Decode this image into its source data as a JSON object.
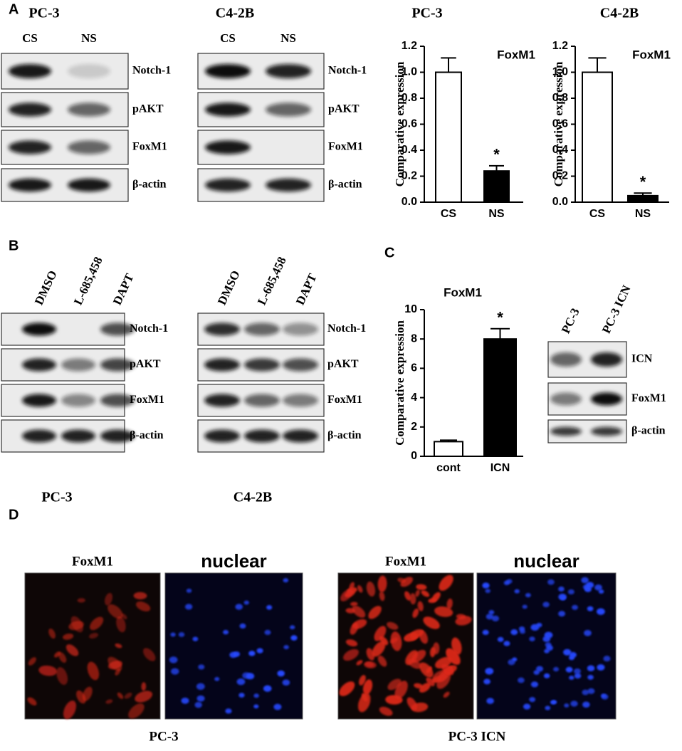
{
  "panel_a": {
    "label": "A",
    "blots": [
      {
        "title": "PC-3",
        "lanes": [
          "CS",
          "NS"
        ],
        "rows": [
          "Notch-1",
          "pAKT",
          "FoxM1",
          "β-actin"
        ]
      },
      {
        "title": "C4-2B",
        "lanes": [
          "CS",
          "NS"
        ],
        "rows": [
          "Notch-1",
          "pAKT",
          "FoxM1",
          "β-actin"
        ]
      }
    ],
    "charts": [
      {
        "type": "bar",
        "title": "PC-3",
        "annotation": "FoxM1",
        "y_label": "Comparative expression",
        "categories": [
          "CS",
          "NS"
        ],
        "values": [
          1.0,
          0.24
        ],
        "errors": [
          0.11,
          0.04
        ],
        "significance": [
          null,
          "*"
        ],
        "ylim": [
          0,
          1.2
        ],
        "yticks": [
          {
            "value": 0,
            "label": "0.0"
          },
          {
            "value": 0.2,
            "label": "0.2"
          },
          {
            "value": 0.4,
            "label": "0.4"
          },
          {
            "value": 0.6,
            "label": "0.6"
          },
          {
            "value": 0.8,
            "label": "0.8"
          },
          {
            "value": 1,
            "label": "1.0"
          },
          {
            "value": 1.2,
            "label": "1.2"
          }
        ]
      },
      {
        "type": "bar",
        "title": "C4-2B",
        "annotation": "FoxM1",
        "y_label": "Comparative expression",
        "categories": [
          "CS",
          "NS"
        ],
        "values": [
          1.0,
          0.05
        ],
        "errors": [
          0.11,
          0.02
        ],
        "significance": [
          null,
          "*"
        ],
        "ylim": [
          0,
          1.2
        ],
        "yticks": [
          {
            "value": 0,
            "label": "0.0"
          },
          {
            "value": 0.2,
            "label": "0.2"
          },
          {
            "value": 0.4,
            "label": "0.4"
          },
          {
            "value": 0.6,
            "label": "0.6"
          },
          {
            "value": 0.8,
            "label": "0.8"
          },
          {
            "value": 1,
            "label": "1.0"
          },
          {
            "value": 1.2,
            "label": "1.2"
          }
        ]
      }
    ]
  },
  "panel_b": {
    "label": "B",
    "blots": [
      {
        "caption": "PC-3",
        "lanes": [
          "DMSO",
          "L-685,458",
          "DAPT"
        ],
        "rows": [
          "Notch-1",
          "pAKT",
          "FoxM1",
          "β-actin"
        ]
      },
      {
        "caption": "C4-2B",
        "lanes": [
          "DMSO",
          "L-685,458",
          "DAPT"
        ],
        "rows": [
          "Notch-1",
          "pAKT",
          "FoxM1",
          "β-actin"
        ]
      }
    ]
  },
  "panel_c": {
    "label": "C",
    "chart": {
      "type": "bar",
      "title": "FoxM1",
      "y_label": "Comparative expression",
      "categories": [
        "cont",
        "ICN"
      ],
      "values": [
        1.0,
        8.0
      ],
      "errors": [
        0.1,
        0.7
      ],
      "significance": [
        null,
        "*"
      ],
      "ylim": [
        0,
        10
      ],
      "yticks": [
        0,
        2,
        4,
        6,
        8,
        10
      ]
    },
    "blot": {
      "lanes": [
        "PC-3",
        "PC-3 ICN"
      ],
      "rows": [
        "ICN",
        "FoxM1",
        "β-actin"
      ]
    }
  },
  "panel_d": {
    "label": "D",
    "images": [
      {
        "title": "FoxM1"
      },
      {
        "title": "nuclear"
      },
      {
        "title": "FoxM1"
      },
      {
        "title": "nuclear"
      }
    ],
    "captions": [
      "PC-3",
      "PC-3 ICN"
    ]
  }
}
